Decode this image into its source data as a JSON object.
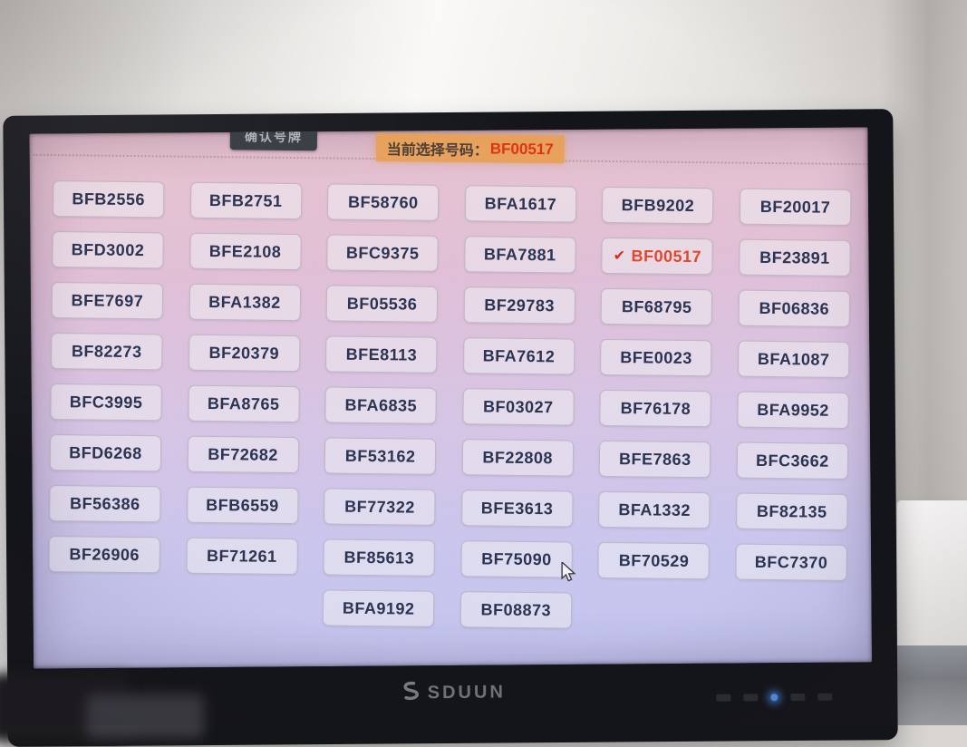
{
  "header": {
    "confirm_button_label": "确认号牌",
    "selected_label_prefix": "当前选择号码：",
    "selected_code": "BF00517"
  },
  "grid": {
    "selected_code": "BF00517",
    "checkmark_icon": "✔",
    "rows": [
      [
        "BFB2556",
        "BFB2751",
        "BF58760",
        "BFA1617",
        "BFB9202",
        "BF20017"
      ],
      [
        "BFD3002",
        "BFE2108",
        "BFC9375",
        "BFA7881",
        "BF00517",
        "BF23891"
      ],
      [
        "BFE7697",
        "BFA1382",
        "BF05536",
        "BF29783",
        "BF68795",
        "BF06836"
      ],
      [
        "BF82273",
        "BF20379",
        "BFE8113",
        "BFA7612",
        "BFE0023",
        "BFA1087"
      ],
      [
        "BFC3995",
        "BFA8765",
        "BFA6835",
        "BF03027",
        "BF76178",
        "BFA9952"
      ],
      [
        "BFD6268",
        "BF72682",
        "BF53162",
        "BF22808",
        "BFE7863",
        "BFC3662"
      ],
      [
        "BF56386",
        "BFB6559",
        "BF77322",
        "BFE3613",
        "BFA1332",
        "BF82135"
      ],
      [
        "BF26906",
        "BF71261",
        "BF85613",
        "BF75090",
        "BF70529",
        "BFC7370"
      ],
      [
        "",
        "",
        "BFA9192",
        "BF08873",
        "",
        ""
      ]
    ]
  },
  "monitor": {
    "brand": "SDUUN"
  },
  "colors": {
    "selected_text": "#e1472b",
    "plate_text": "#2b3453",
    "header_bg": "#e8a054",
    "header_code": "#df3318",
    "screen_top": "#e7c2cd",
    "screen_bottom": "#c2c4ef"
  }
}
